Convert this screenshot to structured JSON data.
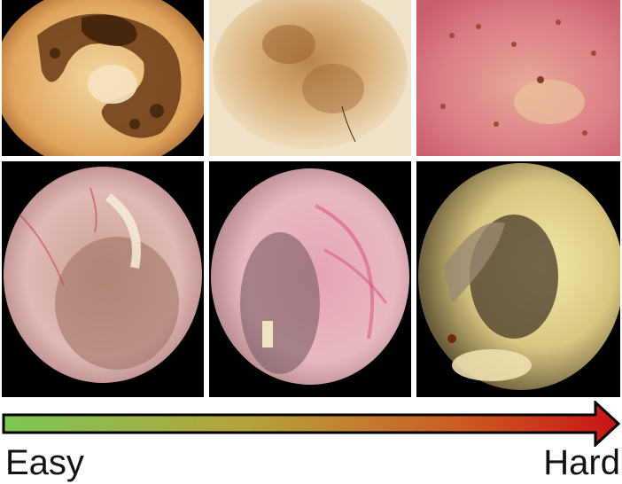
{
  "panels": {
    "dermoscopy": [
      {
        "name": "melanoma-dermoscopy-image"
      },
      {
        "name": "nevus-dermoscopy-image"
      },
      {
        "name": "inflamed-skin-dermoscopy-image"
      }
    ],
    "otoscopy": [
      {
        "name": "eardrum-image-1"
      },
      {
        "name": "eardrum-image-2"
      },
      {
        "name": "eardrum-image-3"
      }
    ]
  },
  "scale": {
    "easy_label": "Easy",
    "hard_label": "Hard",
    "gradient_colors": [
      "#7cc855",
      "#b5a23a",
      "#cc5a22",
      "#c81414"
    ],
    "arrow_outline_color": "#000000"
  }
}
